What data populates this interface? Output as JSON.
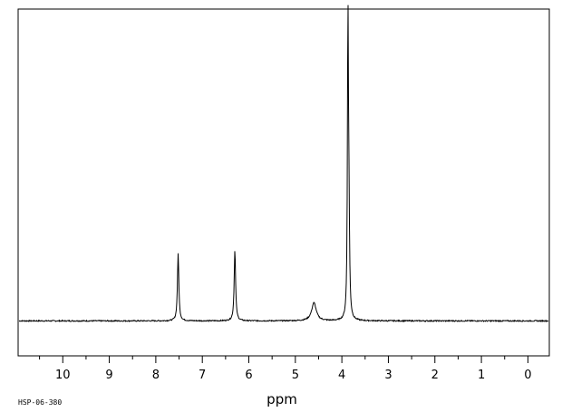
{
  "chart_data": {
    "type": "line",
    "title": "",
    "xlabel": "ppm",
    "ylabel": "",
    "caption": "HSP-06-380",
    "x_reversed": true,
    "xlim": [
      10.96,
      -0.46
    ],
    "ylim": [
      -0.12,
      1.07
    ],
    "grid": false,
    "x_ticks": [
      10,
      9,
      8,
      7,
      6,
      5,
      4,
      3,
      2,
      1,
      0
    ],
    "x_tick_labels": [
      "10",
      "9",
      "8",
      "7",
      "6",
      "5",
      "4",
      "3",
      "2",
      "1",
      "0"
    ],
    "baseline": 0,
    "peaks": [
      {
        "ppm": 7.52,
        "height": 0.23,
        "width": 0.018
      },
      {
        "ppm": 6.3,
        "height": 0.245,
        "width": 0.018
      },
      {
        "ppm": 4.6,
        "height": 0.062,
        "width": 0.06
      },
      {
        "ppm": 3.87,
        "height": 0.99,
        "width": 0.012
      },
      {
        "ppm": 3.85,
        "height": 0.36,
        "width": 0.016
      }
    ]
  }
}
